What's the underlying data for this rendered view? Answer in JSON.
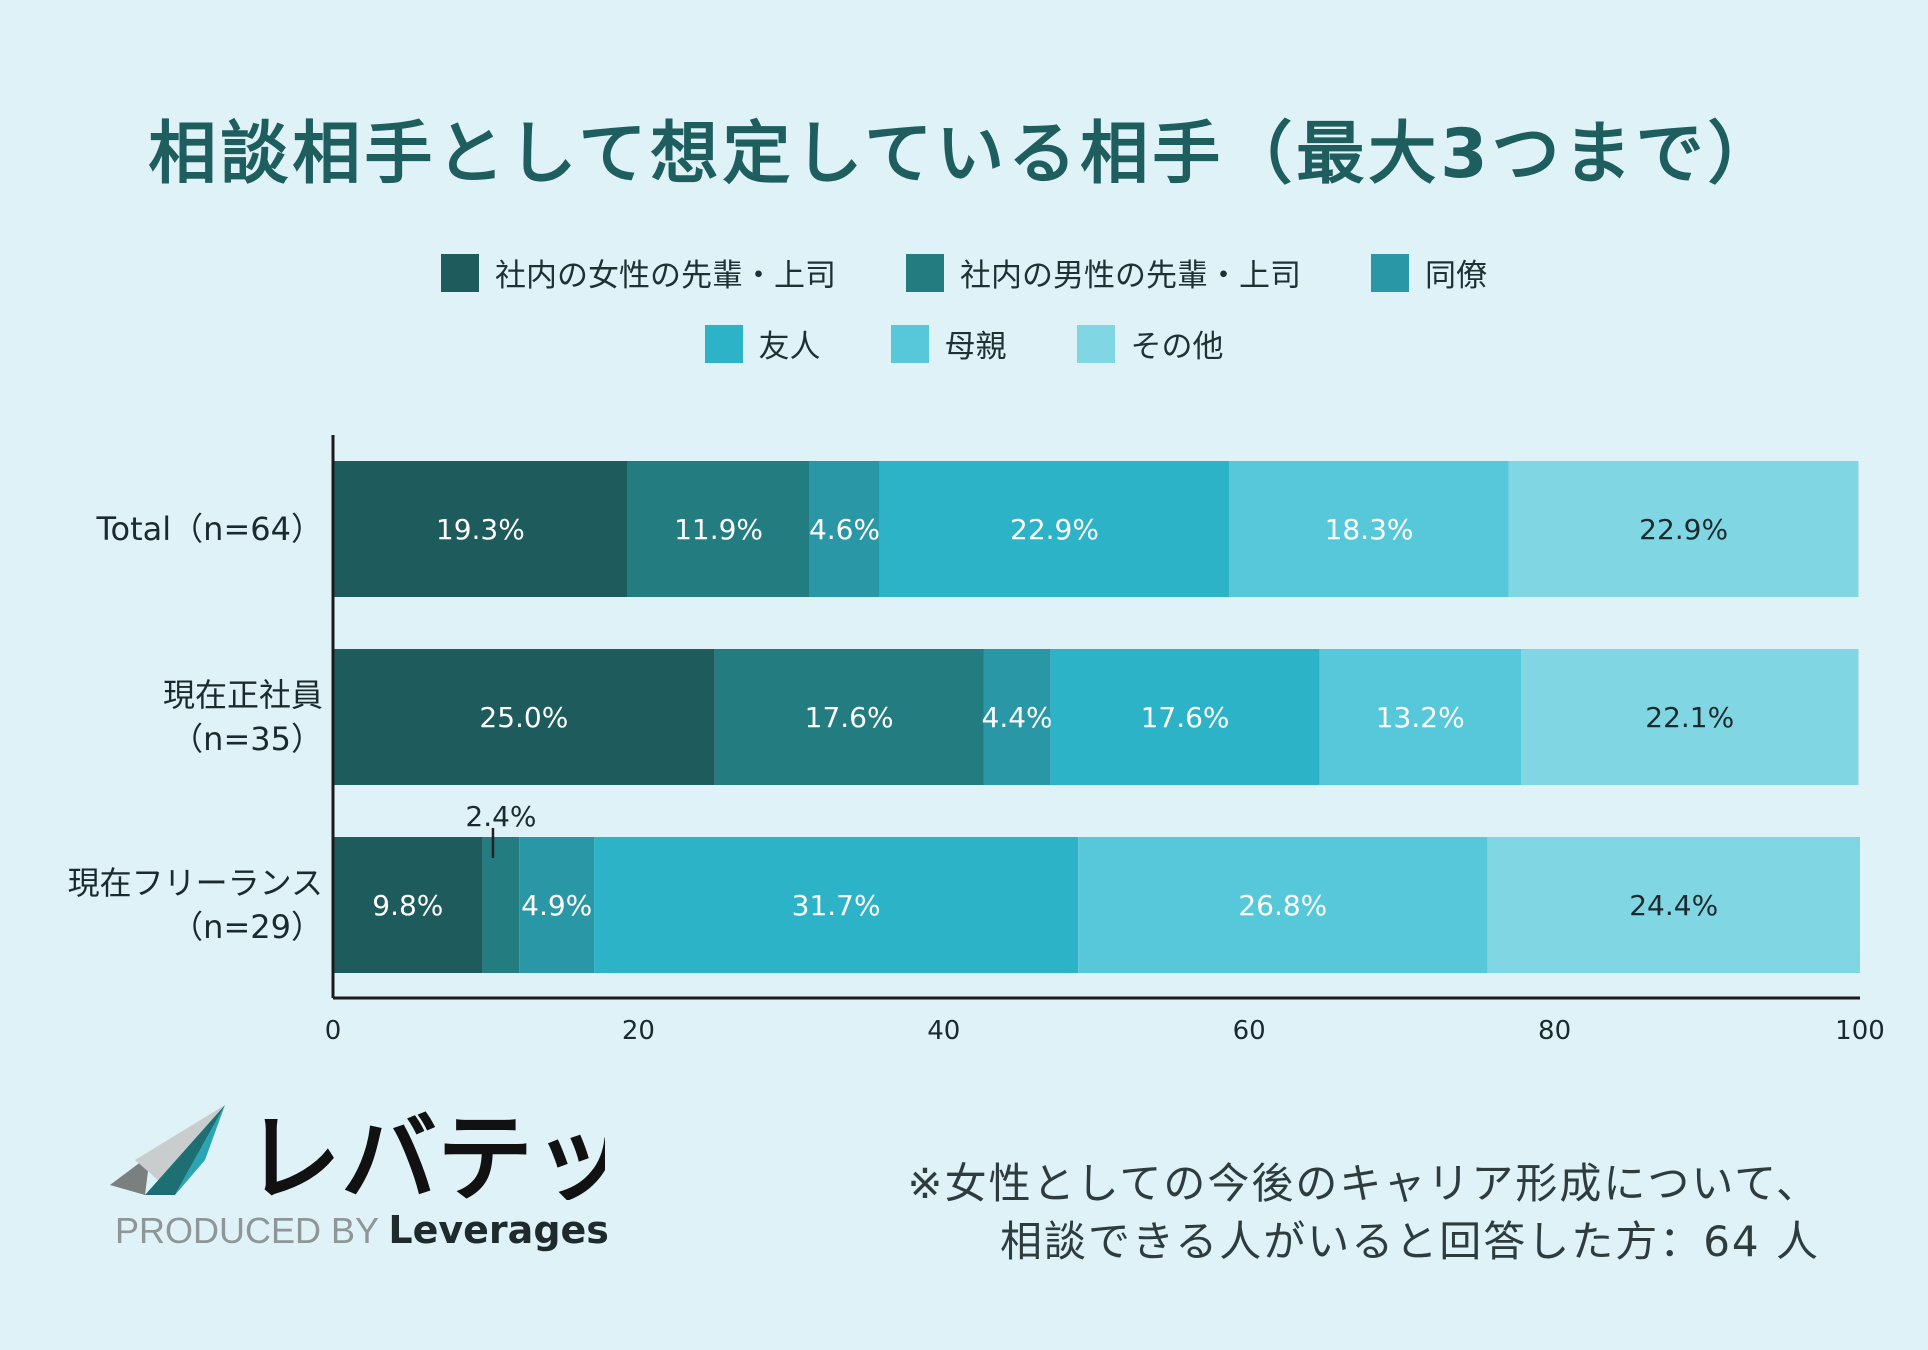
{
  "chart_data": {
    "type": "bar",
    "orientation": "horizontal",
    "stacked": true,
    "title": "相談相手として想定している相手（最大3つまで）",
    "xlim": [
      0,
      100
    ],
    "x_ticks": [
      "0",
      "20",
      "40",
      "60",
      "80",
      "100"
    ],
    "categories": [
      "Total（n=64）",
      "現在正社員\n（n=35）",
      "現在フリーランス\n（n=29）"
    ],
    "series": [
      {
        "name": "社内の女性の先輩・上司",
        "color": "#1d5b5d",
        "values": [
          19.3,
          25.0,
          9.8
        ],
        "labels": [
          "19.3%",
          "25.0%",
          "9.8%"
        ]
      },
      {
        "name": "社内の男性の先輩・上司",
        "color": "#247b80",
        "values": [
          11.9,
          17.6,
          2.4
        ],
        "labels": [
          "11.9%",
          "17.6%",
          "2.4%"
        ]
      },
      {
        "name": "同僚",
        "color": "#2591a0",
        "values": [
          4.6,
          4.4,
          4.9
        ],
        "labels": [
          "4.6%",
          "4.4%",
          "4.9%"
        ]
      },
      {
        "name": "友人",
        "color": "#2aa8b9",
        "values": [
          22.9,
          17.6,
          31.7
        ],
        "labels": [
          "22.9%",
          "17.6%",
          "31.7%"
        ]
      },
      {
        "name": "母親",
        "color": "#2fb6ca",
        "values": [
          18.3,
          13.2,
          26.8
        ],
        "labels": [
          "18.3%",
          "13.2%",
          "26.8%"
        ]
      },
      {
        "name": "その他",
        "color": "#5ec9da",
        "values": [
          22.9,
          22.1,
          24.4
        ],
        "labels": [
          "22.9%",
          "22.1%",
          "24.4%"
        ]
      }
    ],
    "bar_colors_rendered": [
      "#1d5b5d",
      "#237c80",
      "#2997a5",
      "#2db3c8",
      "#57c8d9",
      "#80d6e3"
    ],
    "legend_position": "top",
    "grid": false
  },
  "footnote": {
    "line1": "※女性としての今後のキャリア形成について、",
    "line2": "相談できる人がいると回答した方：64 人"
  },
  "logo": {
    "brand": "レバテック",
    "produced_by": "PRODUCED BY",
    "company": "Leverages"
  }
}
